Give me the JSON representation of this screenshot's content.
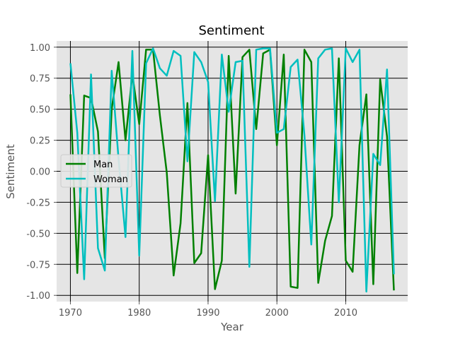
{
  "chart_data": {
    "type": "line",
    "title": "Sentiment",
    "xlabel": "Year",
    "ylabel": "Sentiment",
    "xlim": [
      1968,
      2019
    ],
    "ylim": [
      -1.05,
      1.05
    ],
    "xticks": [
      "1970",
      "1980",
      "1990",
      "2000",
      "2010"
    ],
    "yticks": [
      "1.00",
      "0.75",
      "0.50",
      "0.25",
      "0.00",
      "-0.25",
      "-0.50",
      "-0.75",
      "-1.00"
    ],
    "grid": true,
    "legend_position": "center-left",
    "x": [
      1970,
      1971,
      1972,
      1973,
      1974,
      1975,
      1976,
      1977,
      1978,
      1979,
      1980,
      1981,
      1982,
      1983,
      1984,
      1985,
      1986,
      1987,
      1988,
      1989,
      1990,
      1991,
      1992,
      1993,
      1994,
      1995,
      1996,
      1997,
      1998,
      1999,
      2000,
      2001,
      2002,
      2003,
      2004,
      2005,
      2006,
      2007,
      2008,
      2009,
      2010,
      2011,
      2012,
      2013,
      2014,
      2015,
      2016,
      2017
    ],
    "series": [
      {
        "name": "Man",
        "color": "#008000",
        "values": [
          0.62,
          -0.82,
          0.61,
          0.59,
          0.32,
          -0.7,
          0.5,
          0.88,
          0.25,
          0.78,
          0.38,
          0.98,
          0.98,
          0.45,
          -0.01,
          -0.84,
          -0.42,
          0.55,
          -0.74,
          -0.66,
          0.13,
          -0.95,
          -0.72,
          0.93,
          -0.18,
          0.92,
          0.98,
          0.34,
          0.95,
          0.98,
          0.21,
          0.94,
          -0.93,
          -0.94,
          0.98,
          0.88,
          -0.9,
          -0.56,
          -0.36,
          0.91,
          -0.72,
          -0.81,
          0.21,
          0.62,
          -0.91,
          0.74,
          0.28,
          -0.96
        ]
      },
      {
        "name": "Woman",
        "color": "#00bfbf",
        "values": [
          0.87,
          0.31,
          -0.87,
          0.78,
          -0.62,
          -0.8,
          0.81,
          0.1,
          -0.53,
          0.97,
          -0.68,
          0.87,
          0.99,
          0.83,
          0.77,
          0.97,
          0.93,
          0.08,
          0.96,
          0.88,
          0.72,
          -0.24,
          0.94,
          0.48,
          0.88,
          0.89,
          -0.77,
          0.98,
          0.99,
          0.99,
          0.31,
          0.34,
          0.84,
          0.9,
          0.29,
          -0.59,
          0.91,
          0.98,
          0.99,
          -0.25,
          0.99,
          0.88,
          0.98,
          -0.97,
          0.14,
          0.05,
          0.82,
          -0.83
        ]
      }
    ]
  }
}
